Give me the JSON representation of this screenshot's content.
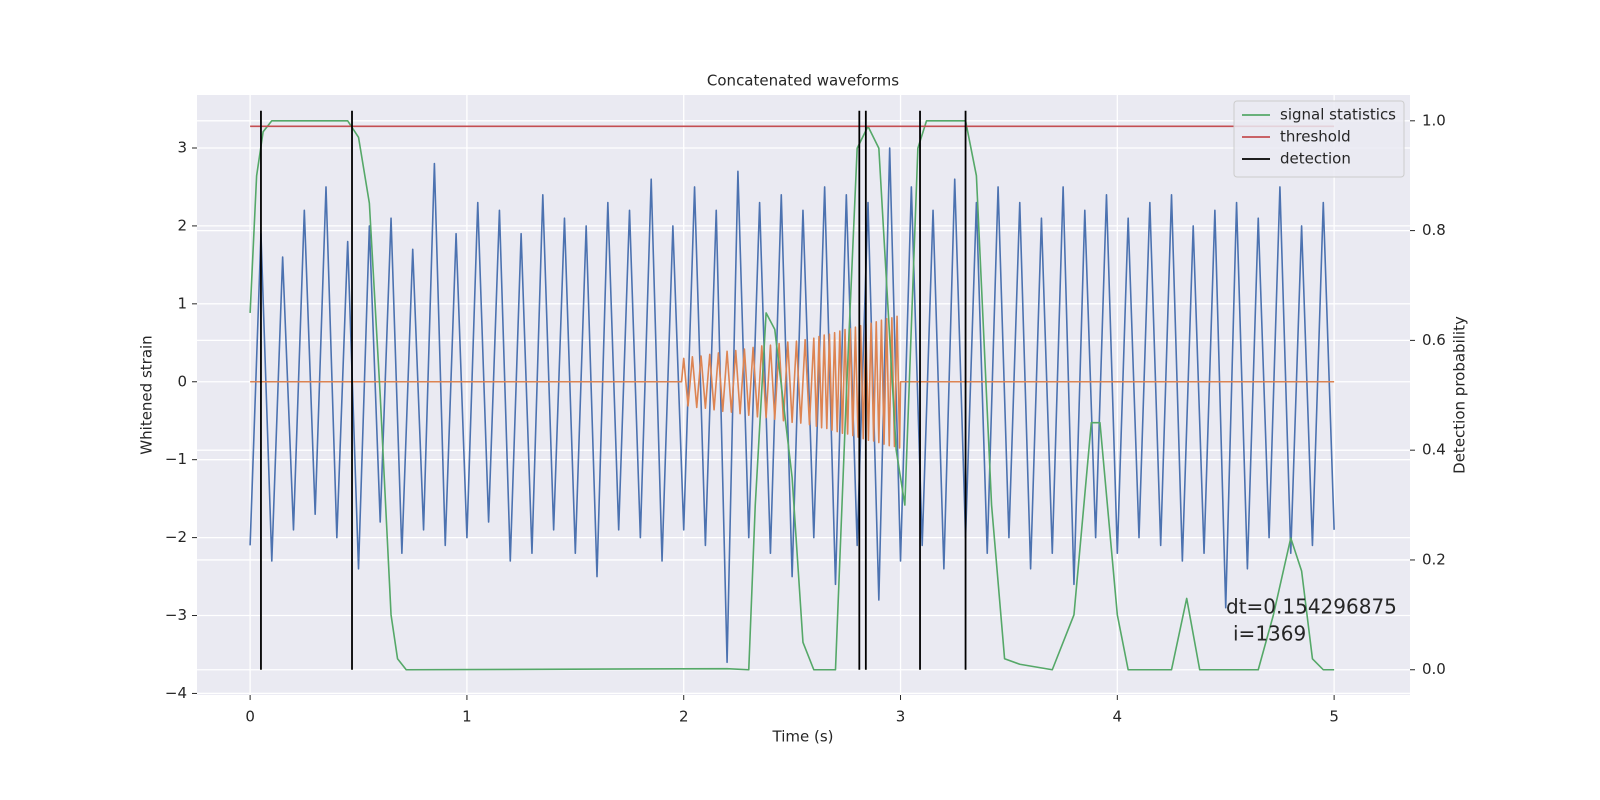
{
  "chart_data": {
    "type": "line",
    "title": "Concatenated waveforms",
    "xlabel": "Time (s)",
    "ylabel": "Whitened strain",
    "y2label": "Detection probability",
    "xlim": [
      -0.245,
      5.35
    ],
    "ylim": [
      -4.02,
      3.68
    ],
    "y2lim": [
      -0.046,
      1.047
    ],
    "xticks": [
      0,
      1,
      2,
      3,
      4,
      5
    ],
    "yticks": [
      {
        "value": -4,
        "label": "−4"
      },
      {
        "value": -3,
        "label": "−3"
      },
      {
        "value": -2,
        "label": "−2"
      },
      {
        "value": -1,
        "label": "−1"
      },
      0,
      1,
      2,
      3
    ],
    "y2ticks": [
      {
        "value": 0,
        "label": "0.0"
      },
      {
        "value": 0.2,
        "label": "0.2"
      },
      {
        "value": 0.4,
        "label": "0.4"
      },
      {
        "value": 0.6,
        "label": "0.6"
      },
      {
        "value": 0.8,
        "label": "0.8"
      },
      {
        "value": 1,
        "label": "1.0"
      }
    ],
    "grid": true,
    "legend": "upper right",
    "series": [
      {
        "color": "#4c72b0",
        "x": [
          0,
          0.05,
          0.1,
          0.15,
          0.2,
          0.25,
          0.3,
          0.35,
          0.4,
          0.45,
          0.5,
          0.55,
          0.6,
          0.65,
          0.7,
          0.75,
          0.8,
          0.85,
          0.9,
          0.95,
          1,
          1.05,
          1.1,
          1.15,
          1.2,
          1.25,
          1.3,
          1.35,
          1.4,
          1.45,
          1.5,
          1.55,
          1.6,
          1.65,
          1.7,
          1.75,
          1.8,
          1.85,
          1.9,
          1.95,
          2,
          2.05,
          2.1,
          2.15,
          2.2,
          2.25,
          2.3,
          2.35,
          2.4,
          2.45,
          2.5,
          2.55,
          2.6,
          2.65,
          2.7,
          2.75,
          2.8,
          2.85,
          2.9,
          2.95,
          3,
          3.05,
          3.1,
          3.15,
          3.2,
          3.25,
          3.3,
          3.35,
          3.4,
          3.45,
          3.5,
          3.55,
          3.6,
          3.65,
          3.7,
          3.75,
          3.8,
          3.85,
          3.9,
          3.95,
          4,
          4.05,
          4.1,
          4.15,
          4.2,
          4.25,
          4.3,
          4.35,
          4.4,
          4.45,
          4.5,
          4.55,
          4.6,
          4.65,
          4.7,
          4.75,
          4.8,
          4.85,
          4.9,
          4.95,
          5
        ],
        "values": [
          -2.1,
          1.9,
          -2.3,
          1.6,
          -1.9,
          2.2,
          -1.7,
          2.5,
          -2.0,
          1.8,
          -2.4,
          2.0,
          -1.8,
          2.1,
          -2.2,
          1.7,
          -1.9,
          2.8,
          -2.1,
          1.9,
          -2.0,
          2.3,
          -1.8,
          2.2,
          -2.3,
          1.9,
          -2.2,
          2.4,
          -1.9,
          2.1,
          -2.2,
          2.0,
          -2.5,
          2.3,
          -1.9,
          2.2,
          -2.0,
          2.6,
          -2.3,
          2.0,
          -1.9,
          2.5,
          -2.1,
          2.2,
          -3.6,
          2.7,
          -2.0,
          2.3,
          -2.2,
          2.4,
          -2.5,
          2.2,
          -2.0,
          2.5,
          -2.6,
          2.4,
          -2.1,
          2.3,
          -2.8,
          3.0,
          -2.3,
          2.5,
          -2.1,
          2.2,
          -2.4,
          2.6,
          -2.0,
          2.3,
          -2.2,
          2.5,
          -2.0,
          2.3,
          -2.4,
          2.1,
          -2.2,
          2.5,
          -2.6,
          2.2,
          -2.0,
          2.4,
          -2.2,
          2.1,
          -2.0,
          2.3,
          -2.1,
          2.4,
          -2.3,
          2.0,
          -2.2,
          2.2,
          -2.9,
          2.3,
          -2.4,
          2.1,
          -2.0,
          2.5,
          -2.2,
          2.0,
          -2.1,
          2.3,
          -1.9
        ]
      },
      {
        "color": "#dd8452",
        "x": [
          0,
          1.99,
          2,
          2.02,
          2.04,
          2.06,
          2.08,
          2.1,
          2.12,
          2.14,
          2.16,
          2.18,
          2.2,
          2.22,
          2.24,
          2.26,
          2.28,
          2.3,
          2.32,
          2.34,
          2.36,
          2.38,
          2.4,
          2.42,
          2.44,
          2.46,
          2.48,
          2.5,
          2.52,
          2.54,
          2.56,
          2.58,
          2.6,
          2.612,
          2.624,
          2.636,
          2.648,
          2.66,
          2.672,
          2.684,
          2.696,
          2.708,
          2.72,
          2.732,
          2.744,
          2.756,
          2.768,
          2.78,
          2.792,
          2.804,
          2.816,
          2.828,
          2.84,
          2.852,
          2.864,
          2.876,
          2.888,
          2.9,
          2.912,
          2.924,
          2.936,
          2.948,
          2.96,
          2.972,
          2.984,
          2.996,
          3,
          5
        ],
        "values": [
          0,
          0,
          0.3,
          -0.31,
          0.32,
          -0.33,
          0.33,
          -0.34,
          0.35,
          -0.36,
          0.37,
          -0.38,
          0.39,
          -0.39,
          0.4,
          -0.41,
          0.42,
          -0.43,
          0.44,
          -0.45,
          0.46,
          -0.46,
          0.47,
          -0.48,
          0.49,
          -0.5,
          0.51,
          -0.52,
          0.52,
          -0.53,
          0.54,
          -0.55,
          0.56,
          -0.57,
          0.58,
          -0.59,
          0.6,
          -0.6,
          0.61,
          -0.62,
          0.63,
          -0.64,
          0.65,
          -0.66,
          0.67,
          -0.67,
          0.68,
          -0.69,
          0.7,
          -0.71,
          0.72,
          -0.73,
          0.74,
          -0.75,
          0.75,
          -0.76,
          0.77,
          -0.78,
          0.79,
          -0.8,
          0.81,
          -0.82,
          0.82,
          -0.83,
          0.84,
          -0.85,
          0,
          0
        ]
      },
      {
        "name": "signal statistics",
        "color": "#55a868",
        "axis": "y2",
        "x": [
          0,
          0.03,
          0.06,
          0.1,
          0.45,
          0.5,
          0.55,
          0.6,
          0.65,
          0.68,
          0.72,
          2.2,
          2.3,
          2.33,
          2.38,
          2.42,
          2.5,
          2.55,
          2.6,
          2.7,
          2.75,
          2.8,
          2.85,
          2.9,
          2.98,
          3.02,
          3.08,
          3.12,
          3.3,
          3.35,
          3.42,
          3.48,
          3.55,
          3.7,
          3.8,
          3.88,
          3.92,
          4,
          4.05,
          4.25,
          4.32,
          4.38,
          4.65,
          4.72,
          4.8,
          4.85,
          4.9,
          4.95,
          5
        ],
        "values": [
          0.65,
          0.9,
          0.98,
          1.0,
          1.0,
          0.97,
          0.85,
          0.5,
          0.1,
          0.02,
          0.0,
          0.002,
          0.0,
          0.3,
          0.65,
          0.62,
          0.35,
          0.05,
          0.0,
          0.0,
          0.5,
          0.95,
          0.99,
          0.95,
          0.4,
          0.3,
          0.95,
          1.0,
          1.0,
          0.9,
          0.3,
          0.02,
          0.01,
          0.0,
          0.1,
          0.45,
          0.45,
          0.1,
          0.0,
          0.0,
          0.13,
          0.0,
          0.0,
          0.1,
          0.24,
          0.18,
          0.02,
          0.0,
          0.0
        ]
      },
      {
        "name": "threshold",
        "color": "#c44e52",
        "axis": "y2",
        "x": [
          0,
          5
        ],
        "values": [
          0.99,
          0.99
        ]
      },
      {
        "name": "detection",
        "color": "#000000",
        "axis": "y2",
        "type": "vlines",
        "x": [
          0.05,
          0.47,
          2.81,
          2.84,
          3.09,
          3.3
        ],
        "ymin": 0,
        "ymax": 1.0
      }
    ],
    "annotations": [
      "dt=0.154296875",
      "i=1369"
    ]
  }
}
